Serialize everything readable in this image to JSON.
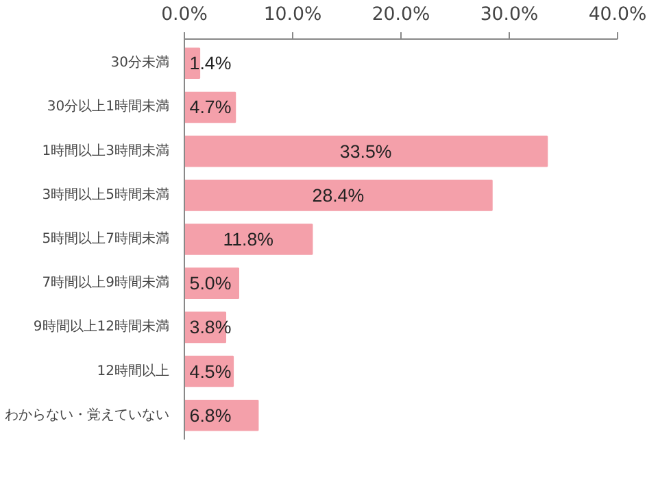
{
  "chart_data": {
    "type": "bar",
    "orientation": "horizontal",
    "categories": [
      "30分未満",
      "30分以上1時間未満",
      "1時間以上3時間未満",
      "3時間以上5時間未満",
      "5時間以上7時間未満",
      "7時間以上9時間未満",
      "9時間以上12時間未満",
      "12時間以上",
      "わからない・覚えていない"
    ],
    "values": [
      1.4,
      4.7,
      33.5,
      28.4,
      11.8,
      5.0,
      3.8,
      4.5,
      6.8
    ],
    "value_labels": [
      "1.4%",
      "4.7%",
      "33.5%",
      "28.4%",
      "11.8%",
      "5.0%",
      "3.8%",
      "4.5%",
      "6.8%"
    ],
    "color": "#f4a0aa",
    "xlim": [
      0,
      40
    ],
    "xticks": [
      {
        "value": 0,
        "label": "0.0%"
      },
      {
        "value": 10,
        "label": "10.0%"
      },
      {
        "value": 20,
        "label": "20.0%"
      },
      {
        "value": 30,
        "label": "30.0%"
      },
      {
        "value": 40,
        "label": "40.0%"
      }
    ],
    "grid": false
  }
}
